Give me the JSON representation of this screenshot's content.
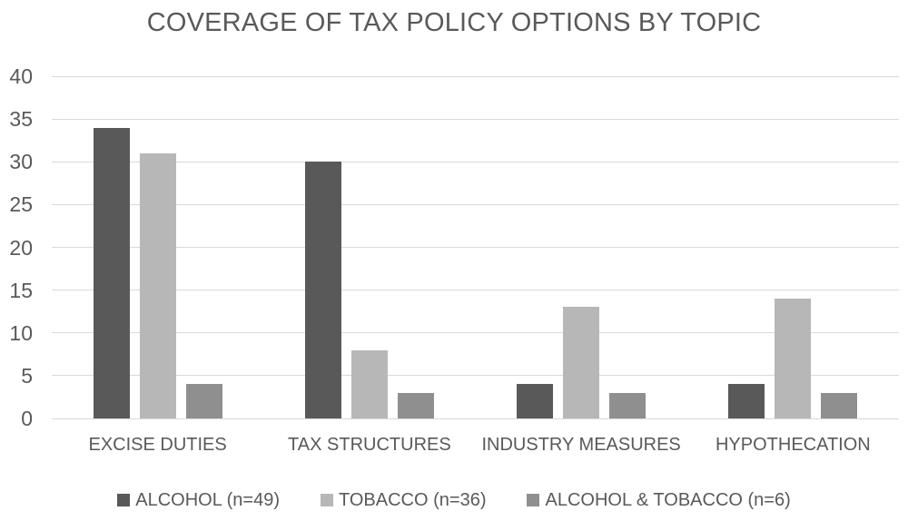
{
  "chart_data": {
    "type": "bar",
    "title": "COVERAGE OF TAX POLICY OPTIONS BY TOPIC",
    "categories": [
      "EXCISE DUTIES",
      "TAX STRUCTURES",
      "INDUSTRY MEASURES",
      "HYPOTHECATION"
    ],
    "series": [
      {
        "name": "ALCOHOL (n=49)",
        "color": "#595959",
        "values": [
          34,
          30,
          4,
          4
        ]
      },
      {
        "name": "TOBACCO (n=36)",
        "color": "#b7b7b7",
        "values": [
          31,
          8,
          13,
          14
        ]
      },
      {
        "name": "ALCOHOL & TOBACCO (n=6)",
        "color": "#8f8f8f",
        "values": [
          4,
          3,
          3,
          3
        ]
      }
    ],
    "xlabel": "",
    "ylabel": "",
    "ylim": [
      0,
      40
    ],
    "yticks": [
      40,
      35,
      30,
      25,
      20,
      15,
      10,
      5,
      0
    ],
    "grid": "horizontal",
    "legend_position": "bottom"
  },
  "style_colors": {
    "text": "#595959",
    "gridline": "#d9d9d9",
    "background": "#ffffff"
  }
}
